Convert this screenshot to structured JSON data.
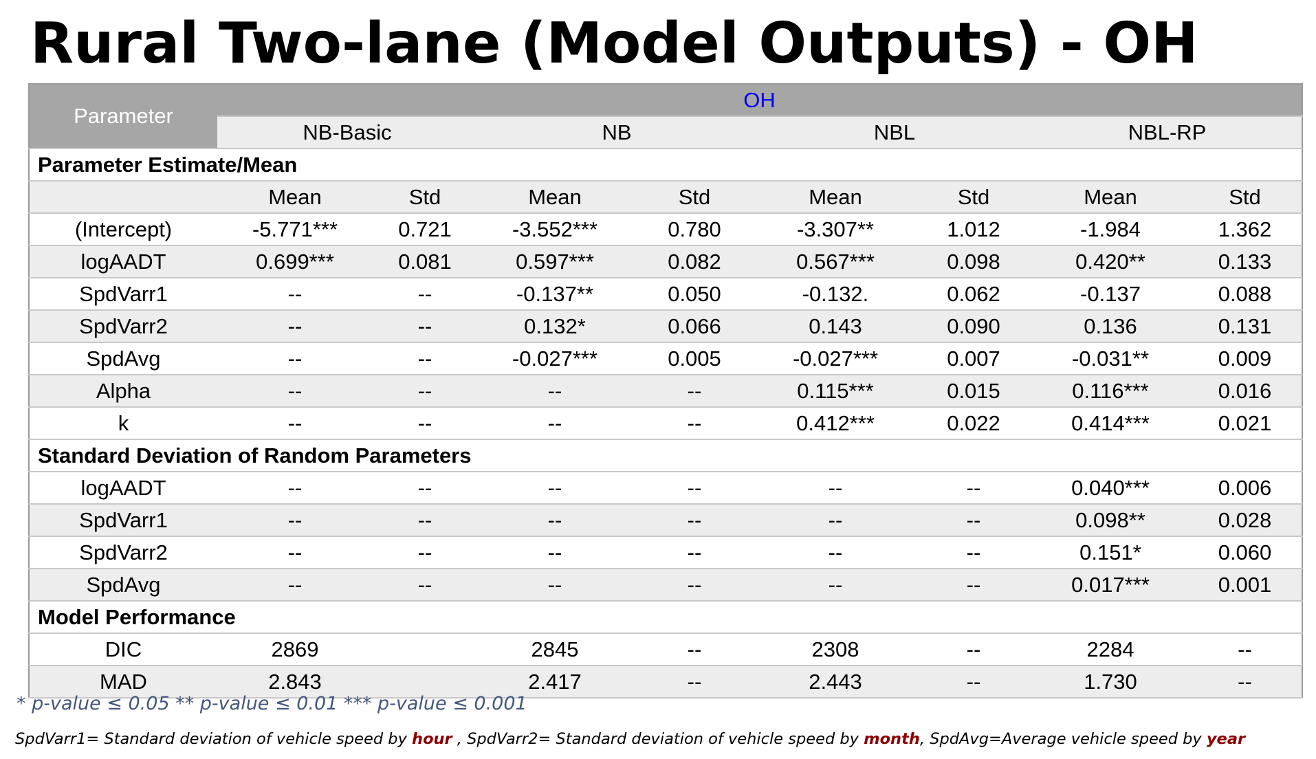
{
  "title": "Rural Two-lane (Model Outputs) - OH",
  "table": {
    "parameter_header": "Parameter",
    "state_header": "OH",
    "models": [
      "NB-Basic",
      "NB",
      "NBL",
      "NBL-RP"
    ],
    "subheaders": [
      "Mean",
      "Std",
      "Mean",
      "Std",
      "Mean",
      "Std",
      "Mean",
      "Std"
    ],
    "sections": {
      "estimates": "Parameter Estimate/Mean",
      "random": "Standard Deviation of Random Parameters",
      "performance": "Model Performance"
    },
    "estimate_rows": [
      {
        "label": "(Intercept)",
        "values": [
          "-5.771***",
          "0.721",
          "-3.552***",
          "0.780",
          "-3.307**",
          "1.012",
          "-1.984",
          "1.362"
        ]
      },
      {
        "label": "logAADT",
        "values": [
          "0.699***",
          "0.081",
          "0.597***",
          "0.082",
          "0.567***",
          "0.098",
          "0.420**",
          "0.133"
        ]
      },
      {
        "label": "SpdVarr1",
        "values": [
          "--",
          "--",
          "-0.137**",
          "0.050",
          "-0.132.",
          "0.062",
          "-0.137",
          "0.088"
        ]
      },
      {
        "label": "SpdVarr2",
        "values": [
          "--",
          "--",
          "0.132*",
          "0.066",
          "0.143",
          "0.090",
          "0.136",
          "0.131"
        ]
      },
      {
        "label": "SpdAvg",
        "values": [
          "--",
          "--",
          "-0.027***",
          "0.005",
          "-0.027***",
          "0.007",
          "-0.031**",
          "0.009"
        ]
      },
      {
        "label": "Alpha",
        "values": [
          "--",
          "--",
          "--",
          "--",
          "0.115***",
          "0.015",
          "0.116***",
          "0.016"
        ]
      },
      {
        "label": "k",
        "values": [
          "--",
          "--",
          "--",
          "--",
          "0.412***",
          "0.022",
          "0.414***",
          "0.021"
        ]
      }
    ],
    "random_rows": [
      {
        "label": "logAADT",
        "values": [
          "--",
          "--",
          "--",
          "--",
          "--",
          "--",
          "0.040***",
          "0.006"
        ]
      },
      {
        "label": "SpdVarr1",
        "values": [
          "--",
          "--",
          "--",
          "--",
          "--",
          "--",
          "0.098**",
          "0.028"
        ]
      },
      {
        "label": "SpdVarr2",
        "values": [
          "--",
          "--",
          "--",
          "--",
          "--",
          "--",
          "0.151*",
          "0.060"
        ]
      },
      {
        "label": "SpdAvg",
        "values": [
          "--",
          "--",
          "--",
          "--",
          "--",
          "--",
          "0.017***",
          "0.001"
        ]
      }
    ],
    "performance_rows": [
      {
        "label": "DIC",
        "values": [
          "2869",
          "",
          "2845",
          "--",
          "2308",
          "--",
          "2284",
          "--"
        ]
      },
      {
        "label": "MAD",
        "values": [
          "2.843",
          "",
          "2.417",
          "--",
          "2.443",
          "--",
          "1.730",
          "--"
        ]
      }
    ]
  },
  "footnotes": {
    "significance": "* p-value ≤ 0.05 ** p-value ≤ 0.01 *** p-value ≤ 0.001",
    "definitions": {
      "part1": "SpdVarr1= Standard deviation of vehicle speed by ",
      "hl1": "hour",
      "part2": " , SpdVarr2= Standard deviation of vehicle speed by ",
      "hl2": "month",
      "part3": ", SpdAvg=Average vehicle speed by ",
      "hl3": "year"
    }
  }
}
